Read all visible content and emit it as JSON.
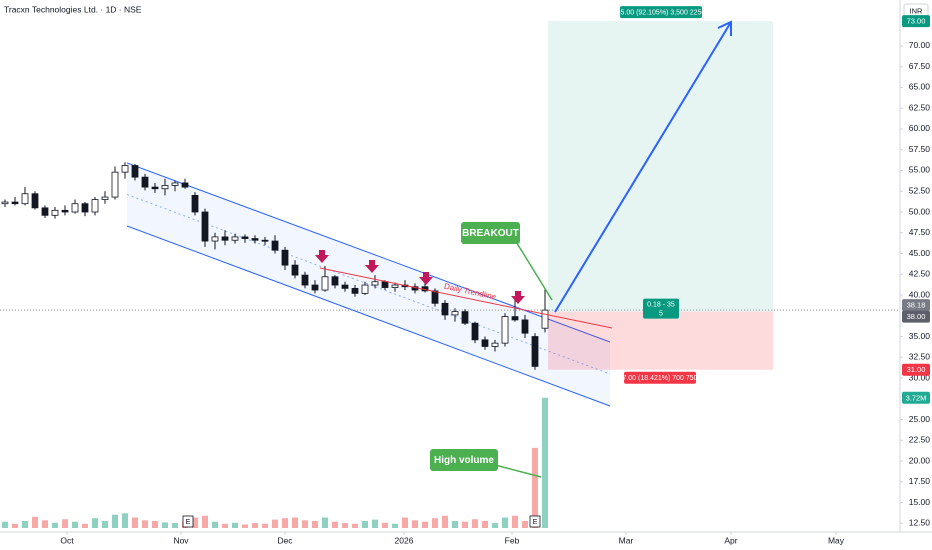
{
  "chart_data": {
    "type": "candlestick",
    "title": "Tracxn Technologies Ltd. · 1D · NSE",
    "currency": "INR",
    "x": [
      1,
      3,
      5,
      7,
      9,
      11,
      13,
      15,
      17,
      19,
      21,
      23,
      25,
      27,
      29,
      31,
      33,
      35,
      37,
      39,
      41,
      43,
      45,
      47,
      49,
      51,
      53,
      55,
      57,
      59,
      61,
      63,
      65,
      67,
      69,
      71,
      73,
      75,
      77,
      79,
      81,
      83,
      85,
      87,
      89,
      91,
      93,
      95,
      97,
      99,
      101,
      103,
      105,
      107,
      109
    ],
    "candles": [
      [
        51,
        51.5,
        50.6,
        51.2
      ],
      [
        51.2,
        51.8,
        50.8,
        51
      ],
      [
        51,
        53,
        50.8,
        52.2
      ],
      [
        52.2,
        52.5,
        50.3,
        50.5
      ],
      [
        50.5,
        50.8,
        49.3,
        49.6
      ],
      [
        49.6,
        50.6,
        49.2,
        50.2
      ],
      [
        50.2,
        50.8,
        49.6,
        50
      ],
      [
        50,
        51.5,
        49.8,
        51
      ],
      [
        51,
        51.2,
        49.5,
        50
      ],
      [
        50,
        51.8,
        49.6,
        51.5
      ],
      [
        51.5,
        52.5,
        51,
        51.8
      ],
      [
        51.8,
        55.5,
        51.5,
        54.8
      ],
      [
        54.8,
        56,
        54,
        55.6
      ],
      [
        55.6,
        55.8,
        53.8,
        54.2
      ],
      [
        54.2,
        54.6,
        52.6,
        53
      ],
      [
        53,
        53.5,
        52.3,
        52.8
      ],
      [
        52.8,
        54,
        52,
        53.2
      ],
      [
        53.2,
        53.8,
        52.5,
        53.5
      ],
      [
        53.5,
        54,
        52.8,
        53
      ],
      [
        52,
        52.4,
        49.6,
        50
      ],
      [
        50,
        50.4,
        45.8,
        46.5
      ],
      [
        46.5,
        47.5,
        45.5,
        47
      ],
      [
        47,
        47.8,
        46,
        46.6
      ],
      [
        46.6,
        47.4,
        46.2,
        47
      ],
      [
        47,
        47.3,
        46.3,
        46.8
      ],
      [
        46.8,
        47.2,
        46.2,
        46.6
      ],
      [
        46.6,
        47,
        46,
        46.5
      ],
      [
        46.5,
        47.2,
        45,
        45.4
      ],
      [
        45.4,
        45.8,
        43,
        43.6
      ],
      [
        43.6,
        44.2,
        42,
        42.4
      ],
      [
        42.4,
        42.8,
        40.8,
        41.2
      ],
      [
        41.2,
        41.8,
        40.2,
        40.6
      ],
      [
        40.6,
        43.5,
        40.4,
        42.2
      ],
      [
        42.2,
        42.4,
        40.8,
        41.2
      ],
      [
        41.2,
        41.6,
        40.4,
        40.8
      ],
      [
        40.8,
        41.2,
        39.8,
        40.2
      ],
      [
        40.2,
        41.6,
        40,
        41.2
      ],
      [
        41.2,
        42.4,
        40.8,
        41.6
      ],
      [
        41.6,
        41.8,
        40.6,
        40.9
      ],
      [
        40.9,
        41.5,
        40.4,
        41.2
      ],
      [
        41.2,
        41.8,
        40.6,
        41
      ],
      [
        41,
        41.4,
        40.2,
        40.6
      ],
      [
        41,
        41.5,
        40.3,
        40.5
      ],
      [
        40.5,
        40.8,
        38.6,
        39
      ],
      [
        39,
        39.4,
        37,
        37.6
      ],
      [
        37.6,
        38.4,
        36.8,
        38
      ],
      [
        38,
        38.3,
        36.4,
        36.6
      ],
      [
        36.6,
        36.8,
        34.2,
        34.6
      ],
      [
        34.6,
        35,
        33.4,
        33.8
      ],
      [
        33.8,
        34.6,
        33.2,
        34.2
      ],
      [
        34.2,
        37.8,
        33.8,
        37.4
      ],
      [
        37.4,
        39.5,
        36.8,
        37
      ],
      [
        37,
        37.6,
        34.8,
        35.4
      ],
      [
        35,
        35.4,
        31,
        31.4
      ],
      [
        36,
        40.8,
        35.5,
        38.18
      ]
    ],
    "volumes": [
      0.18,
      0.12,
      0.2,
      0.32,
      0.22,
      0.15,
      0.25,
      0.18,
      0.12,
      0.28,
      0.2,
      0.38,
      0.42,
      0.3,
      0.22,
      0.2,
      0.16,
      0.14,
      0.2,
      0.3,
      0.35,
      0.18,
      0.12,
      0.15,
      0.1,
      0.14,
      0.12,
      0.24,
      0.28,
      0.3,
      0.22,
      0.2,
      0.3,
      0.18,
      0.14,
      0.12,
      0.2,
      0.24,
      0.15,
      0.12,
      0.3,
      0.22,
      0.18,
      0.28,
      0.35,
      0.2,
      0.18,
      0.25,
      0.2,
      0.14,
      0.3,
      0.35,
      0.2,
      2.29,
      3.72
    ],
    "up_color": "#ffffff",
    "down_color": "#131722",
    "volume_up_color": "#8fd1c1",
    "volume_down_color": "#f7a9a7",
    "xlim": [
      0,
      180
    ],
    "ylim": [
      11.45,
      75.54
    ],
    "vlim": [
      0,
      4
    ],
    "xticks": [
      {
        "value": 13.4,
        "label": "Oct"
      },
      {
        "value": 36.2,
        "label": "Nov"
      },
      {
        "value": 57,
        "label": "Dec"
      },
      {
        "value": 80.8,
        "label": "2026"
      },
      {
        "value": 102.4,
        "label": "Feb"
      },
      {
        "value": 125.2,
        "label": "Mar"
      },
      {
        "value": 146.2,
        "label": "Apr"
      },
      {
        "value": 167.2,
        "label": "May"
      }
    ],
    "yticks": [
      {
        "value": 70,
        "label": "70.00"
      },
      {
        "value": 67.5,
        "label": "67.50"
      },
      {
        "value": 65,
        "label": "65.00"
      },
      {
        "value": 62.5,
        "label": "62.50"
      },
      {
        "value": 60,
        "label": "60.00"
      },
      {
        "value": 57.5,
        "label": "57.50"
      },
      {
        "value": 55,
        "label": "55.00"
      },
      {
        "value": 52.5,
        "label": "52.50"
      },
      {
        "value": 50,
        "label": "50.00"
      },
      {
        "value": 47.5,
        "label": "47.50"
      },
      {
        "value": 45,
        "label": "45.00"
      },
      {
        "value": 42.5,
        "label": "42.50"
      },
      {
        "value": 40,
        "label": "40.00"
      },
      {
        "value": 35,
        "label": "35.00"
      },
      {
        "value": 32.5,
        "label": "32.50"
      },
      {
        "value": 30,
        "label": "30.00"
      },
      {
        "value": 25,
        "label": "25.00"
      },
      {
        "value": 22.5,
        "label": "22.50"
      },
      {
        "value": 20,
        "label": "20.00"
      },
      {
        "value": 17.5,
        "label": "17.50"
      },
      {
        "value": 15,
        "label": "15.00"
      },
      {
        "value": 12.5,
        "label": "12.50"
      }
    ],
    "price_tags": [
      {
        "value": 73,
        "label": "73.00",
        "color": "#089981"
      },
      {
        "value": 38.18,
        "label": "38.18",
        "color": "#787b86"
      },
      {
        "value": 38,
        "label": "38.00",
        "color": "#5d606b"
      },
      {
        "value": 31,
        "label": "31.00",
        "color": "#f23645"
      }
    ],
    "volume_tag": {
      "value": 3.72,
      "label": "3.72M",
      "color": "#22ab94"
    },
    "position": {
      "target_label": "35.00 (92.105%) 3,500 2250",
      "center_label": "0.18 - 35",
      "ratio_label": "5",
      "stop_label": "7.00 (18.421%) 700 750"
    },
    "annotations": {
      "breakout": "BREAKOUT",
      "high_volume": "High volume",
      "trendline": "Daily Trendline",
      "earnings": [
        "E",
        "E"
      ]
    }
  }
}
